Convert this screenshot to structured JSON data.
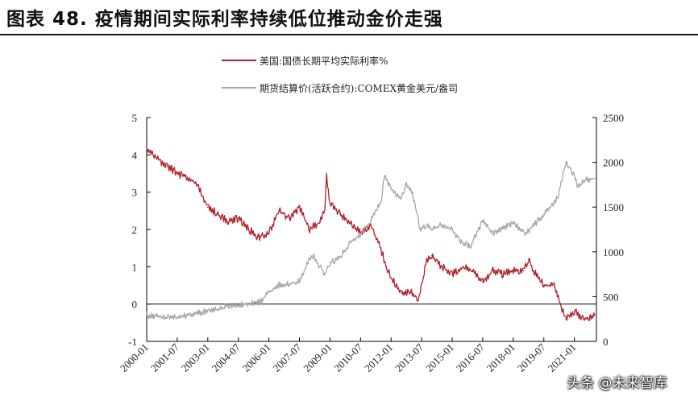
{
  "figure": {
    "title": "图表 48. 疫情期间实际利率持续低位推动金价走强",
    "watermark": "头条 @未来智库"
  },
  "colors": {
    "real_rate": "#b01f2a",
    "gold": "#a6a6a6",
    "axis": "#000000"
  },
  "chart_data": {
    "type": "line",
    "xlabel": "",
    "ylabel": "",
    "x_ticks": [
      "2000-01",
      "2001-07",
      "2003-01",
      "2004-07",
      "2006-01",
      "2007-07",
      "2009-01",
      "2010-07",
      "2012-01",
      "2013-07",
      "2015-01",
      "2016-07",
      "2018-01",
      "2019-07",
      "2021-01"
    ],
    "x_range": [
      "2000-01",
      "2022-02"
    ],
    "y_left": {
      "ticks": [
        "5",
        "4",
        "3",
        "2",
        "1",
        "0",
        "-1"
      ],
      "range": [
        -1,
        5
      ]
    },
    "y_right": {
      "ticks": [
        "2500",
        "2000",
        "1500",
        "1000",
        "500",
        "0"
      ],
      "range": [
        0,
        2500
      ]
    },
    "zero_line": true,
    "grid": false,
    "legend_position": "top-center",
    "series": [
      {
        "name": "美国:国债长期平均实际利率%",
        "axis": "left",
        "x": [
          "2000-01",
          "2000-07",
          "2001-01",
          "2001-07",
          "2002-01",
          "2002-07",
          "2003-01",
          "2003-07",
          "2004-01",
          "2004-07",
          "2005-01",
          "2005-07",
          "2006-01",
          "2006-07",
          "2007-01",
          "2007-07",
          "2008-01",
          "2008-07",
          "2008-10",
          "2008-11",
          "2009-01",
          "2009-07",
          "2010-01",
          "2010-07",
          "2011-01",
          "2011-07",
          "2011-10",
          "2012-01",
          "2012-07",
          "2013-01",
          "2013-05",
          "2013-08",
          "2013-10",
          "2014-01",
          "2014-07",
          "2015-01",
          "2015-07",
          "2016-01",
          "2016-07",
          "2017-01",
          "2017-07",
          "2018-01",
          "2018-07",
          "2018-10",
          "2019-01",
          "2019-07",
          "2020-01",
          "2020-03",
          "2020-08",
          "2021-01",
          "2021-07",
          "2022-01"
        ],
        "values": [
          4.2,
          3.9,
          3.7,
          3.5,
          3.4,
          3.2,
          2.6,
          2.4,
          2.2,
          2.3,
          2.0,
          1.8,
          1.9,
          2.5,
          2.3,
          2.6,
          2.0,
          2.2,
          2.6,
          3.4,
          2.7,
          2.4,
          2.2,
          1.9,
          2.1,
          1.5,
          1.0,
          0.7,
          0.3,
          0.3,
          0.1,
          0.7,
          1.2,
          1.3,
          1.0,
          0.8,
          1.0,
          0.9,
          0.6,
          0.9,
          0.8,
          0.9,
          0.9,
          1.2,
          0.9,
          0.5,
          0.5,
          0.2,
          -0.4,
          -0.2,
          -0.4,
          -0.3
        ]
      },
      {
        "name": "期货结算价(活跃合约):COMEX黄金美元/盎司",
        "axis": "right",
        "x": [
          "2000-01",
          "2000-07",
          "2001-01",
          "2001-07",
          "2002-01",
          "2002-07",
          "2003-01",
          "2003-07",
          "2004-01",
          "2004-07",
          "2005-01",
          "2005-07",
          "2006-01",
          "2006-07",
          "2007-01",
          "2007-07",
          "2008-01",
          "2008-03",
          "2008-10",
          "2009-01",
          "2009-07",
          "2010-01",
          "2010-07",
          "2011-01",
          "2011-07",
          "2011-09",
          "2012-01",
          "2012-07",
          "2012-10",
          "2013-01",
          "2013-04",
          "2013-06",
          "2013-10",
          "2014-01",
          "2014-07",
          "2015-01",
          "2015-07",
          "2015-12",
          "2016-07",
          "2017-01",
          "2017-07",
          "2018-01",
          "2018-08",
          "2019-01",
          "2019-07",
          "2020-01",
          "2020-03",
          "2020-08",
          "2021-01",
          "2021-03",
          "2021-07",
          "2022-01"
        ],
        "values": [
          290,
          280,
          265,
          270,
          290,
          310,
          350,
          355,
          400,
          400,
          425,
          430,
          550,
          630,
          640,
          670,
          920,
          960,
          750,
          880,
          940,
          1100,
          1200,
          1350,
          1550,
          1850,
          1700,
          1600,
          1750,
          1680,
          1450,
          1250,
          1300,
          1250,
          1300,
          1250,
          1100,
          1060,
          1350,
          1200,
          1260,
          1330,
          1200,
          1290,
          1420,
          1560,
          1600,
          2000,
          1850,
          1720,
          1800,
          1820
        ]
      }
    ]
  }
}
